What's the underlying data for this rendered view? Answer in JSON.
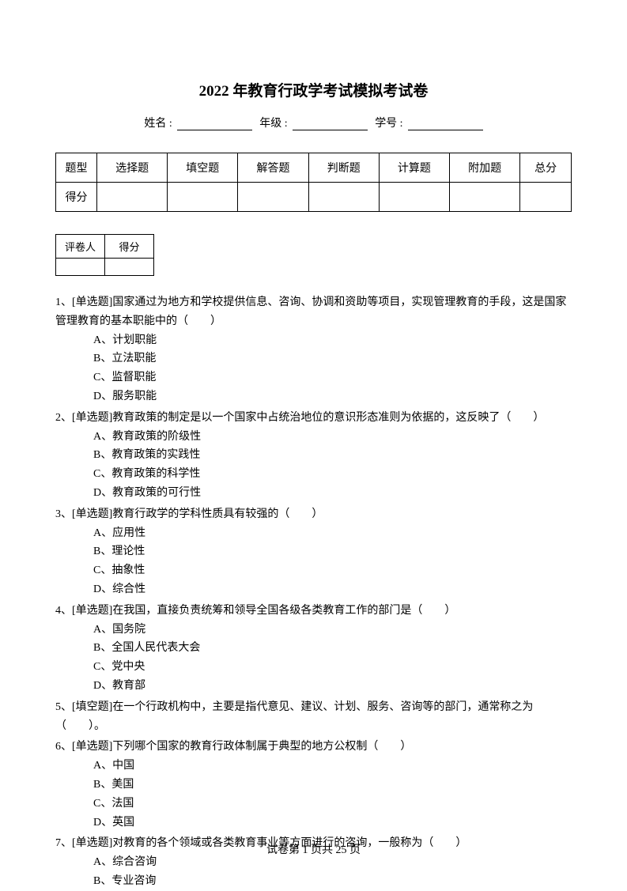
{
  "title": "2022 年教育行政学考试模拟考试卷",
  "info": {
    "name_label": "姓名 :",
    "grade_label": "年级 :",
    "id_label": "学号 :"
  },
  "scoreTable": {
    "row1": [
      "题型",
      "选择题",
      "填空题",
      "解答题",
      "判断题",
      "计算题",
      "附加题",
      "总分"
    ],
    "row2Label": "得分"
  },
  "graderTable": {
    "c1": "评卷人",
    "c2": "得分"
  },
  "questions": [
    {
      "num": "1、",
      "type": "[单选题]",
      "text": "国家通过为地方和学校提供信息、咨询、协调和资助等项目，实现管理教育的手段，这是国家管理教育的基本职能中的（　　）",
      "options": [
        "A、计划职能",
        "B、立法职能",
        "C、监督职能",
        "D、服务职能"
      ]
    },
    {
      "num": "2、",
      "type": "[单选题]",
      "text": "教育政策的制定是以一个国家中占统治地位的意识形态准则为依据的，这反映了（　　）",
      "options": [
        "A、教育政策的阶级性",
        "B、教育政策的实践性",
        "C、教育政策的科学性",
        "D、教育政策的可行性"
      ]
    },
    {
      "num": "3、",
      "type": "[单选题]",
      "text": "教育行政学的学科性质具有较强的（　　）",
      "options": [
        "A、应用性",
        "B、理论性",
        "C、抽象性",
        "D、综合性"
      ]
    },
    {
      "num": "4、",
      "type": "[单选题]",
      "text": "在我国，直接负责统筹和领导全国各级各类教育工作的部门是（　　）",
      "options": [
        "A、国务院",
        "B、全国人民代表大会",
        "C、党中央",
        "D、教育部"
      ]
    },
    {
      "num": "5、",
      "type": "[填空题]",
      "text": "在一个行政机构中，主要是指代意见、建议、计划、服务、咨询等的部门，通常称之为（　　）。",
      "options": []
    },
    {
      "num": "6、",
      "type": "[单选题]",
      "text": "下列哪个国家的教育行政体制属于典型的地方公权制（　　）",
      "options": [
        "A、中国",
        "B、美国",
        "C、法国",
        "D、英国"
      ]
    },
    {
      "num": "7、",
      "type": "[单选题]",
      "text": "对教育的各个领域或各类教育事业等方面进行的咨询，一般称为（　　）",
      "options": [
        "A、综合咨询",
        "B、专业咨询"
      ]
    }
  ],
  "footer": "试卷第 1 页共 25 页"
}
